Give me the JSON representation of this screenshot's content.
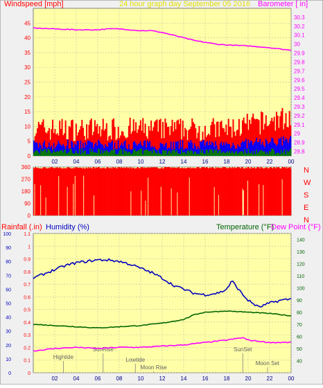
{
  "header": {
    "left_label": "Windspeed [mph]",
    "center_label": "24 hour graph day   September 05 2016",
    "right_label": "Barometer [ in]"
  },
  "colors": {
    "plot_bg": "#ffffa8",
    "frame_bg": "#f0f0f0",
    "wind_gust": "#ff0000",
    "wind_avg": "#0000ff",
    "wind_low": "#008000",
    "barometer": "#ff00ff",
    "title_yellow": "#ffff00",
    "humidity": "#0000c0",
    "temperature": "#006400",
    "dewpoint": "#ff00ff",
    "rain": "#ff0000"
  },
  "chart_data": [
    {
      "type": "line",
      "name": "wind-barometer",
      "x_ticks": [
        "02",
        "04",
        "06",
        "08",
        "10",
        "12",
        "14",
        "16",
        "18",
        "20",
        "22",
        "00"
      ],
      "y_left_ticks": [
        0,
        5,
        10,
        15,
        20,
        25,
        30,
        35,
        40,
        45
      ],
      "y_left_range": [
        0,
        50
      ],
      "y_right_ticks": [
        28.8,
        28.9,
        29,
        29.1,
        29.2,
        29.3,
        29.4,
        29.5,
        29.6,
        29.7,
        29.8,
        29.9,
        30,
        30.1,
        30.2,
        30.3
      ],
      "y_right_range": [
        28.75,
        30.4
      ],
      "barometer_hours": [
        0,
        2,
        4,
        6,
        7,
        8,
        9,
        10,
        11,
        12,
        13,
        14,
        15,
        16,
        17,
        18,
        20,
        22,
        24
      ],
      "barometer_values": [
        30.18,
        30.17,
        30.16,
        30.16,
        30.17,
        30.17,
        30.16,
        30.15,
        30.15,
        30.13,
        30.1,
        30.07,
        30.04,
        30.02,
        30.0,
        29.99,
        29.98,
        29.96,
        29.93
      ],
      "gust_band": [
        5,
        15
      ],
      "avg_band": [
        2,
        7
      ],
      "low_band": [
        0.5,
        2.5
      ]
    },
    {
      "type": "line",
      "name": "wind-direction",
      "x_ticks": [
        "02",
        "04",
        "06",
        "08",
        "10",
        "12",
        "14",
        "16",
        "18",
        "20",
        "22",
        "00"
      ],
      "y_ticks": [
        0,
        90,
        180,
        270,
        360
      ],
      "y_range": [
        0,
        360
      ],
      "compass_labels": [
        "N",
        "W",
        "S",
        "E",
        "N"
      ]
    },
    {
      "type": "line",
      "name": "humidity-temperature",
      "header_left_a": "Rainfall (.in)",
      "header_left_b": "Humidity (%)",
      "header_right_a": "Temperature (°F)",
      "header_right_b": "Dew Point (°F)",
      "x_ticks": [
        "02",
        "04",
        "06",
        "08",
        "10",
        "12",
        "14",
        "16",
        "18",
        "20",
        "22",
        "00"
      ],
      "humidity_ticks": [
        0,
        10,
        20,
        30,
        40,
        50,
        60,
        70,
        80,
        90,
        100
      ],
      "humidity_range": [
        0,
        100
      ],
      "rain_ticks": [
        0,
        0.1,
        0.2,
        0.3,
        0.4,
        0.5,
        0.6,
        0.7,
        0.8,
        0.9,
        1,
        1.1
      ],
      "rain_range": [
        0,
        1.1
      ],
      "temp_ticks": [
        40,
        50,
        60,
        70,
        80,
        90,
        100,
        110,
        120,
        130,
        140
      ],
      "temp_range": [
        30,
        145
      ],
      "humidity_hours": [
        0,
        1,
        2,
        3,
        4,
        5,
        6,
        7,
        8,
        9,
        10,
        11,
        12,
        13,
        14,
        15,
        16,
        17,
        17.5,
        18,
        18.5,
        19,
        19.5,
        20,
        21,
        22,
        23,
        24
      ],
      "humidity_values": [
        68,
        71,
        74,
        77,
        79,
        80,
        81,
        81,
        80,
        78,
        75,
        72,
        68,
        63,
        60,
        57,
        56,
        57,
        58,
        60,
        66,
        61,
        56,
        52,
        47,
        50,
        52,
        53
      ],
      "temp_hours": [
        0,
        2,
        4,
        6,
        8,
        10,
        12,
        14,
        15,
        16,
        18,
        20,
        22,
        24
      ],
      "temp_values": [
        70,
        69,
        68,
        67,
        68,
        69,
        71,
        74,
        78,
        80,
        81,
        80,
        79,
        77
      ],
      "dew_hours": [
        0,
        2,
        4,
        6,
        8,
        10,
        12,
        14,
        16,
        18,
        19.5,
        20,
        22,
        24
      ],
      "dew_values": [
        48,
        50,
        51,
        50,
        51,
        51,
        52,
        53,
        55,
        57,
        59,
        57,
        55,
        55
      ],
      "events": [
        {
          "label": "Hightide",
          "hour": 2.8
        },
        {
          "label": "SunRise",
          "hour": 6.5
        },
        {
          "label": "Lowtide",
          "hour": 9.5
        },
        {
          "label": "Moon Rise",
          "hour": 11.2
        },
        {
          "label": "SunSet",
          "hour": 19.5
        },
        {
          "label": "Moon Set",
          "hour": 21.8
        }
      ]
    }
  ]
}
